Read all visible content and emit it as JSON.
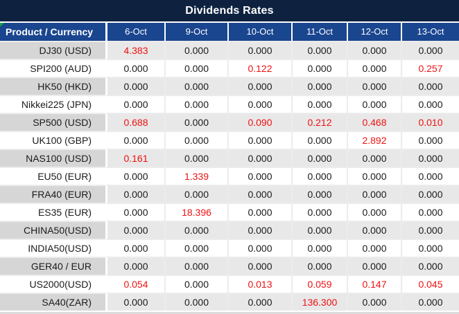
{
  "title": "Dividends Rates",
  "colors": {
    "title_bg": "#0E2240",
    "header_bg": "#1A458F",
    "col0_gray": "#D6D6D6",
    "cell_gray": "#E8E8E8",
    "grid_line": "#ECECEC",
    "red_value": "#EE1111",
    "black_value": "#1A1A1A",
    "green_marker": "#12A14B"
  },
  "table": {
    "header": [
      "Product / Currency",
      "6-Oct",
      "9-Oct",
      "10-Oct",
      "11-Oct",
      "12-Oct",
      "13-Oct"
    ],
    "rows": [
      {
        "product": "DJ30 (USD)",
        "values": [
          "4.383",
          "0.000",
          "0.000",
          "0.000",
          "0.000",
          "0.000"
        ],
        "red": [
          0
        ]
      },
      {
        "product": "SPI200 (AUD)",
        "values": [
          "0.000",
          "0.000",
          "0.122",
          "0.000",
          "0.000",
          "0.257"
        ],
        "red": [
          2,
          5
        ]
      },
      {
        "product": "HK50 (HKD)",
        "values": [
          "0.000",
          "0.000",
          "0.000",
          "0.000",
          "0.000",
          "0.000"
        ],
        "red": []
      },
      {
        "product": "Nikkei225 (JPN)",
        "values": [
          "0.000",
          "0.000",
          "0.000",
          "0.000",
          "0.000",
          "0.000"
        ],
        "red": []
      },
      {
        "product": "SP500 (USD)",
        "values": [
          "0.688",
          "0.000",
          "0.090",
          "0.212",
          "0.468",
          "0.010"
        ],
        "red": [
          0,
          2,
          3,
          4,
          5
        ]
      },
      {
        "product": "UK100 (GBP)",
        "values": [
          "0.000",
          "0.000",
          "0.000",
          "0.000",
          "2.892",
          "0.000"
        ],
        "red": [
          4
        ]
      },
      {
        "product": "NAS100 (USD)",
        "values": [
          "0.161",
          "0.000",
          "0.000",
          "0.000",
          "0.000",
          "0.000"
        ],
        "red": [
          0
        ]
      },
      {
        "product": "EU50 (EUR)",
        "values": [
          "0.000",
          "1.339",
          "0.000",
          "0.000",
          "0.000",
          "0.000"
        ],
        "red": [
          1
        ]
      },
      {
        "product": "FRA40 (EUR)",
        "values": [
          "0.000",
          "0.000",
          "0.000",
          "0.000",
          "0.000",
          "0.000"
        ],
        "red": []
      },
      {
        "product": "ES35 (EUR)",
        "values": [
          "0.000",
          "18.396",
          "0.000",
          "0.000",
          "0.000",
          "0.000"
        ],
        "red": [
          1
        ]
      },
      {
        "product": "CHINA50(USD)",
        "values": [
          "0.000",
          "0.000",
          "0.000",
          "0.000",
          "0.000",
          "0.000"
        ],
        "red": []
      },
      {
        "product": "INDIA50(USD)",
        "values": [
          "0.000",
          "0.000",
          "0.000",
          "0.000",
          "0.000",
          "0.000"
        ],
        "red": []
      },
      {
        "product": "GER40 / EUR",
        "values": [
          "0.000",
          "0.000",
          "0.000",
          "0.000",
          "0.000",
          "0.000"
        ],
        "red": []
      },
      {
        "product": "US2000(USD)",
        "values": [
          "0.054",
          "0.000",
          "0.013",
          "0.059",
          "0.147",
          "0.045"
        ],
        "red": [
          0,
          2,
          3,
          4,
          5
        ]
      },
      {
        "product": "SA40(ZAR)",
        "values": [
          "0.000",
          "0.000",
          "0.000",
          "136.300",
          "0.000",
          "0.000"
        ],
        "red": [
          3
        ]
      }
    ]
  }
}
